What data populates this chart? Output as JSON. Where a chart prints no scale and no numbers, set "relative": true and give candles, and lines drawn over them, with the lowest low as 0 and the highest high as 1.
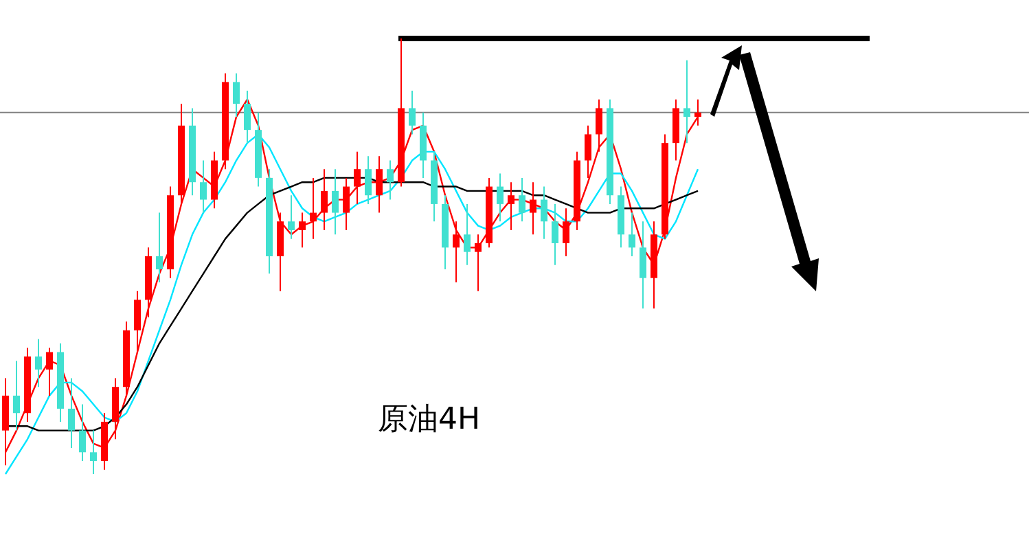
{
  "chart_data": {
    "type": "candlestick",
    "relative": true,
    "categories": [
      null,
      null,
      null,
      null,
      null,
      null,
      null,
      null,
      null,
      null,
      null,
      null,
      null,
      null,
      null,
      null,
      null,
      null,
      null,
      null,
      null,
      null,
      null,
      null,
      null,
      null,
      null,
      null,
      null,
      null,
      null,
      null,
      null,
      null,
      null,
      null,
      null,
      null,
      null,
      null,
      null,
      null,
      null,
      null,
      null,
      null,
      null,
      null,
      null,
      null,
      null,
      null,
      null,
      null,
      null,
      null,
      null,
      null,
      null,
      null,
      null,
      null,
      null,
      null
    ],
    "ohlc": [
      [
        0.1,
        0.22,
        0.02,
        0.18
      ],
      [
        0.18,
        0.26,
        0.1,
        0.14
      ],
      [
        0.14,
        0.29,
        0.12,
        0.27
      ],
      [
        0.27,
        0.31,
        0.2,
        0.24
      ],
      [
        0.24,
        0.29,
        0.18,
        0.28
      ],
      [
        0.28,
        0.3,
        0.12,
        0.15
      ],
      [
        0.15,
        0.22,
        0.06,
        0.1
      ],
      [
        0.1,
        0.16,
        0.03,
        0.05
      ],
      [
        0.05,
        0.1,
        0.0,
        0.03
      ],
      [
        0.03,
        0.14,
        0.01,
        0.12
      ],
      [
        0.12,
        0.22,
        0.08,
        0.2
      ],
      [
        0.2,
        0.35,
        0.18,
        0.33
      ],
      [
        0.33,
        0.42,
        0.28,
        0.4
      ],
      [
        0.4,
        0.52,
        0.36,
        0.5
      ],
      [
        0.5,
        0.6,
        0.44,
        0.47
      ],
      [
        0.47,
        0.66,
        0.45,
        0.64
      ],
      [
        0.64,
        0.85,
        0.62,
        0.8
      ],
      [
        0.8,
        0.84,
        0.64,
        0.67
      ],
      [
        0.67,
        0.72,
        0.6,
        0.63
      ],
      [
        0.63,
        0.74,
        0.61,
        0.72
      ],
      [
        0.72,
        0.92,
        0.7,
        0.9
      ],
      [
        0.9,
        0.92,
        0.82,
        0.85
      ],
      [
        0.85,
        0.88,
        0.76,
        0.79
      ],
      [
        0.79,
        0.83,
        0.66,
        0.68
      ],
      [
        0.68,
        0.7,
        0.46,
        0.5
      ],
      [
        0.5,
        0.6,
        0.42,
        0.58
      ],
      [
        0.58,
        0.64,
        0.54,
        0.56
      ],
      [
        0.56,
        0.6,
        0.52,
        0.58
      ],
      [
        0.58,
        0.68,
        0.54,
        0.6
      ],
      [
        0.6,
        0.7,
        0.56,
        0.65
      ],
      [
        0.65,
        0.7,
        0.55,
        0.6
      ],
      [
        0.6,
        0.68,
        0.56,
        0.66
      ],
      [
        0.66,
        0.74,
        0.62,
        0.7
      ],
      [
        0.7,
        0.73,
        0.62,
        0.64
      ],
      [
        0.64,
        0.73,
        0.6,
        0.7
      ],
      [
        0.7,
        0.72,
        0.63,
        0.67
      ],
      [
        0.67,
        1.0,
        0.66,
        0.84
      ],
      [
        0.84,
        0.88,
        0.78,
        0.8
      ],
      [
        0.8,
        0.83,
        0.68,
        0.72
      ],
      [
        0.72,
        0.74,
        0.58,
        0.62
      ],
      [
        0.62,
        0.64,
        0.47,
        0.52
      ],
      [
        0.52,
        0.58,
        0.44,
        0.55
      ],
      [
        0.55,
        0.62,
        0.48,
        0.51
      ],
      [
        0.51,
        0.55,
        0.42,
        0.53
      ],
      [
        0.53,
        0.68,
        0.52,
        0.66
      ],
      [
        0.66,
        0.69,
        0.58,
        0.62
      ],
      [
        0.62,
        0.67,
        0.56,
        0.64
      ],
      [
        0.64,
        0.68,
        0.58,
        0.6
      ],
      [
        0.6,
        0.67,
        0.55,
        0.63
      ],
      [
        0.63,
        0.66,
        0.54,
        0.58
      ],
      [
        0.58,
        0.62,
        0.48,
        0.53
      ],
      [
        0.53,
        0.61,
        0.5,
        0.58
      ],
      [
        0.58,
        0.74,
        0.56,
        0.72
      ],
      [
        0.72,
        0.8,
        0.68,
        0.78
      ],
      [
        0.78,
        0.86,
        0.74,
        0.84
      ],
      [
        0.84,
        0.86,
        0.62,
        0.64
      ],
      [
        0.64,
        0.66,
        0.52,
        0.55
      ],
      [
        0.55,
        0.6,
        0.5,
        0.52
      ],
      [
        0.52,
        0.58,
        0.38,
        0.45
      ],
      [
        0.45,
        0.58,
        0.38,
        0.55
      ],
      [
        0.55,
        0.78,
        0.54,
        0.76
      ],
      [
        0.76,
        0.86,
        0.72,
        0.84
      ],
      [
        0.84,
        0.95,
        0.76,
        0.82
      ],
      [
        0.82,
        0.86,
        0.8,
        0.83
      ]
    ],
    "series": [
      {
        "type": "line",
        "color": "#ff0000",
        "values": [
          0.05,
          0.1,
          0.16,
          0.22,
          0.26,
          0.25,
          0.18,
          0.12,
          0.07,
          0.06,
          0.1,
          0.18,
          0.28,
          0.38,
          0.46,
          0.52,
          0.62,
          0.7,
          0.68,
          0.66,
          0.72,
          0.82,
          0.86,
          0.8,
          0.68,
          0.58,
          0.55,
          0.57,
          0.58,
          0.61,
          0.63,
          0.63,
          0.66,
          0.67,
          0.67,
          0.68,
          0.72,
          0.79,
          0.8,
          0.74,
          0.64,
          0.56,
          0.52,
          0.52,
          0.56,
          0.6,
          0.63,
          0.63,
          0.62,
          0.61,
          0.58,
          0.56,
          0.6,
          0.67,
          0.75,
          0.78,
          0.7,
          0.6,
          0.52,
          0.48,
          0.56,
          0.68,
          0.78,
          0.82
        ]
      },
      {
        "type": "line",
        "color": "#00e5ff",
        "values": [
          0.0,
          0.04,
          0.08,
          0.13,
          0.18,
          0.21,
          0.21,
          0.19,
          0.16,
          0.13,
          0.12,
          0.14,
          0.19,
          0.26,
          0.33,
          0.4,
          0.48,
          0.55,
          0.6,
          0.63,
          0.67,
          0.72,
          0.76,
          0.78,
          0.75,
          0.7,
          0.65,
          0.61,
          0.59,
          0.58,
          0.59,
          0.6,
          0.62,
          0.63,
          0.64,
          0.65,
          0.68,
          0.72,
          0.74,
          0.74,
          0.7,
          0.65,
          0.6,
          0.57,
          0.56,
          0.57,
          0.59,
          0.6,
          0.61,
          0.61,
          0.6,
          0.58,
          0.58,
          0.61,
          0.65,
          0.69,
          0.69,
          0.65,
          0.6,
          0.55,
          0.54,
          0.58,
          0.64,
          0.7
        ]
      },
      {
        "type": "line",
        "color": "#000000",
        "values": [
          0.11,
          0.11,
          0.11,
          0.1,
          0.1,
          0.1,
          0.1,
          0.1,
          0.1,
          0.11,
          0.13,
          0.16,
          0.2,
          0.25,
          0.3,
          0.34,
          0.38,
          0.42,
          0.46,
          0.5,
          0.54,
          0.57,
          0.6,
          0.62,
          0.64,
          0.65,
          0.66,
          0.67,
          0.67,
          0.68,
          0.68,
          0.68,
          0.68,
          0.68,
          0.67,
          0.67,
          0.67,
          0.67,
          0.67,
          0.66,
          0.66,
          0.66,
          0.65,
          0.65,
          0.65,
          0.65,
          0.65,
          0.65,
          0.64,
          0.64,
          0.63,
          0.62,
          0.61,
          0.6,
          0.6,
          0.6,
          0.61,
          0.61,
          0.61,
          0.61,
          0.62,
          0.63,
          0.64,
          0.65
        ]
      }
    ],
    "ref_lines": [
      {
        "axis": "y",
        "value": 0.83,
        "color": "#808080"
      },
      {
        "axis": "y",
        "value": 1.0,
        "color": "#000000"
      }
    ],
    "annotations": [
      "原油4H"
    ]
  }
}
